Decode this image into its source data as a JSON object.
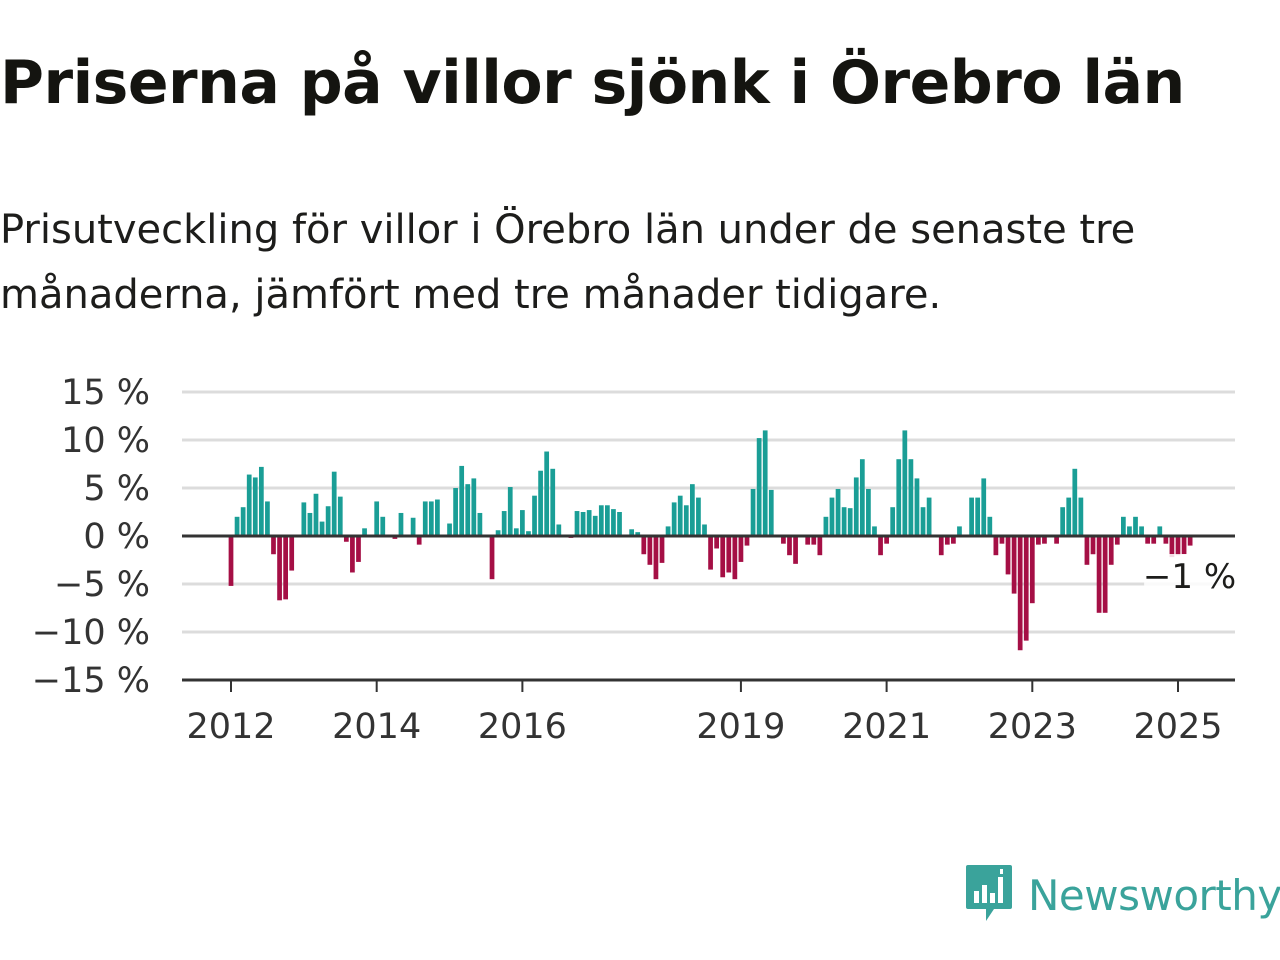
{
  "title": "Priserna på villor sjönk i Örebro län",
  "subtitle": "Prisutveckling för villor i Örebro län under de senaste tre månaderna, jämfört med tre månader tidigare.",
  "brand": {
    "name": "Newsworthy",
    "icon": "newsworthy-bar-chart-logo-icon",
    "color": "#3aa39b"
  },
  "colors": {
    "positive": "#1a9e96",
    "negative": "#a50f45",
    "grid": "#dcdcdc",
    "axis": "#333333"
  },
  "chart_data": {
    "type": "bar",
    "ylim": [
      -15,
      15
    ],
    "yticks": [
      15,
      10,
      5,
      0,
      -5,
      -10,
      -15
    ],
    "ytick_labels": [
      "15 %",
      "10 %",
      "5 %",
      "0 %",
      "−5 %",
      "−10 %",
      "−15 %"
    ],
    "xticks": [
      "2012",
      "2014",
      "2016",
      "2019",
      "2021",
      "2023",
      "2025"
    ],
    "grid": true,
    "end_label": "−1 %",
    "x_start": "2012-01",
    "x_end": "2025-05",
    "values": [
      -5.2,
      2,
      3,
      6.4,
      6.1,
      7.2,
      3.6,
      -1.9,
      -6.7,
      -6.6,
      -3.6,
      0,
      3.5,
      2.4,
      4.4,
      1.5,
      3.1,
      6.7,
      4.1,
      -0.6,
      -3.8,
      -2.7,
      0.8,
      0,
      3.6,
      2,
      0,
      -0.3,
      2.4,
      0,
      1.9,
      -0.9,
      3.6,
      3.6,
      3.8,
      0,
      1.3,
      5,
      7.3,
      5.4,
      6,
      2.4,
      0,
      -4.5,
      0.6,
      2.6,
      5.1,
      0.8,
      2.7,
      0.5,
      4.2,
      6.8,
      8.8,
      7,
      1.2,
      0,
      -0.2,
      2.6,
      2.5,
      2.7,
      2.1,
      3.2,
      3.2,
      2.8,
      2.5,
      0,
      0.7,
      0.4,
      -1.9,
      -3,
      -4.5,
      -2.8,
      1,
      3.5,
      4.2,
      3.2,
      5.4,
      4,
      1.2,
      -3.5,
      -1.3,
      -4.3,
      -3.8,
      -4.5,
      -2.7,
      -1,
      4.9,
      10.2,
      11,
      4.8,
      0,
      -0.8,
      -2,
      -2.9,
      0,
      -0.9,
      -0.9,
      -2,
      2,
      4,
      4.9,
      3,
      2.9,
      6.1,
      8,
      4.9,
      1,
      -2,
      -0.8,
      3,
      8,
      11,
      8,
      6,
      3,
      4,
      0,
      -2,
      -0.9,
      -0.8,
      1,
      0,
      4,
      4,
      6,
      2,
      -2,
      -0.8,
      -4,
      -6,
      -11.9,
      -10.9,
      -7,
      -0.9,
      -0.8,
      0,
      -0.8,
      3,
      4,
      7,
      4,
      -3,
      -1.9,
      -8,
      -8,
      -3,
      -0.9,
      2,
      1,
      2,
      1,
      -0.8,
      -0.8,
      1,
      -0.8,
      -2.2,
      -2,
      -1.9,
      -1
    ]
  }
}
